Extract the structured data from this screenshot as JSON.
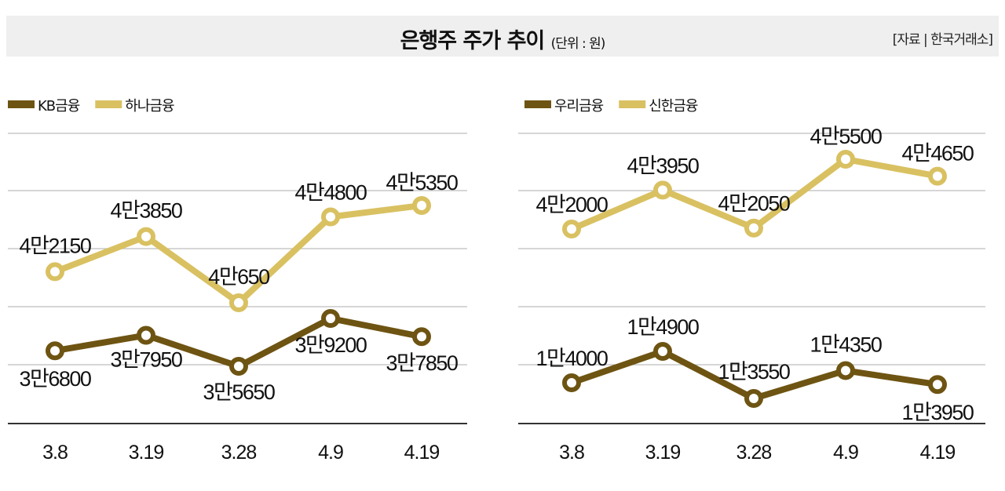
{
  "header": {
    "title": "은행주 주가 추이",
    "unit": "(단위 : 원)",
    "source": "[자료 | 한국거래소]"
  },
  "colors": {
    "dark": "#6e5412",
    "light": "#d9c162",
    "grid": "#bdbdbd",
    "header_bg": "#efefef"
  },
  "chart_data": [
    {
      "type": "line",
      "categories": [
        "3.8",
        "3.19",
        "3.28",
        "4.9",
        "4.19"
      ],
      "legend": "top-left",
      "grid": true,
      "series": [
        {
          "name": "KB금융",
          "color": "#6e5412",
          "values": [
            36800,
            37950,
            35650,
            39200,
            37850
          ],
          "labels": [
            "3만6800",
            "3만7950",
            "3만5650",
            "3만9200",
            "3만7850"
          ]
        },
        {
          "name": "하나금융",
          "color": "#d9c162",
          "values": [
            42150,
            43850,
            40650,
            44800,
            45350
          ],
          "labels": [
            "4만2150",
            "4만3850",
            "4만650",
            "4만4800",
            "4만5350"
          ]
        }
      ]
    },
    {
      "type": "line",
      "categories": [
        "3.8",
        "3.19",
        "3.28",
        "4.9",
        "4.19"
      ],
      "legend": "top-left",
      "grid": true,
      "series": [
        {
          "name": "우리금융",
          "color": "#6e5412",
          "values": [
            14000,
            14900,
            13550,
            14350,
            13950
          ],
          "labels": [
            "1만4000",
            "1만4900",
            "1만3550",
            "1만4350",
            "1만3950"
          ]
        },
        {
          "name": "신한금융",
          "color": "#d9c162",
          "values": [
            42000,
            43950,
            42050,
            45500,
            44650
          ],
          "labels": [
            "4만2000",
            "4만3950",
            "4만2050",
            "4만5500",
            "4만4650"
          ]
        }
      ]
    }
  ]
}
